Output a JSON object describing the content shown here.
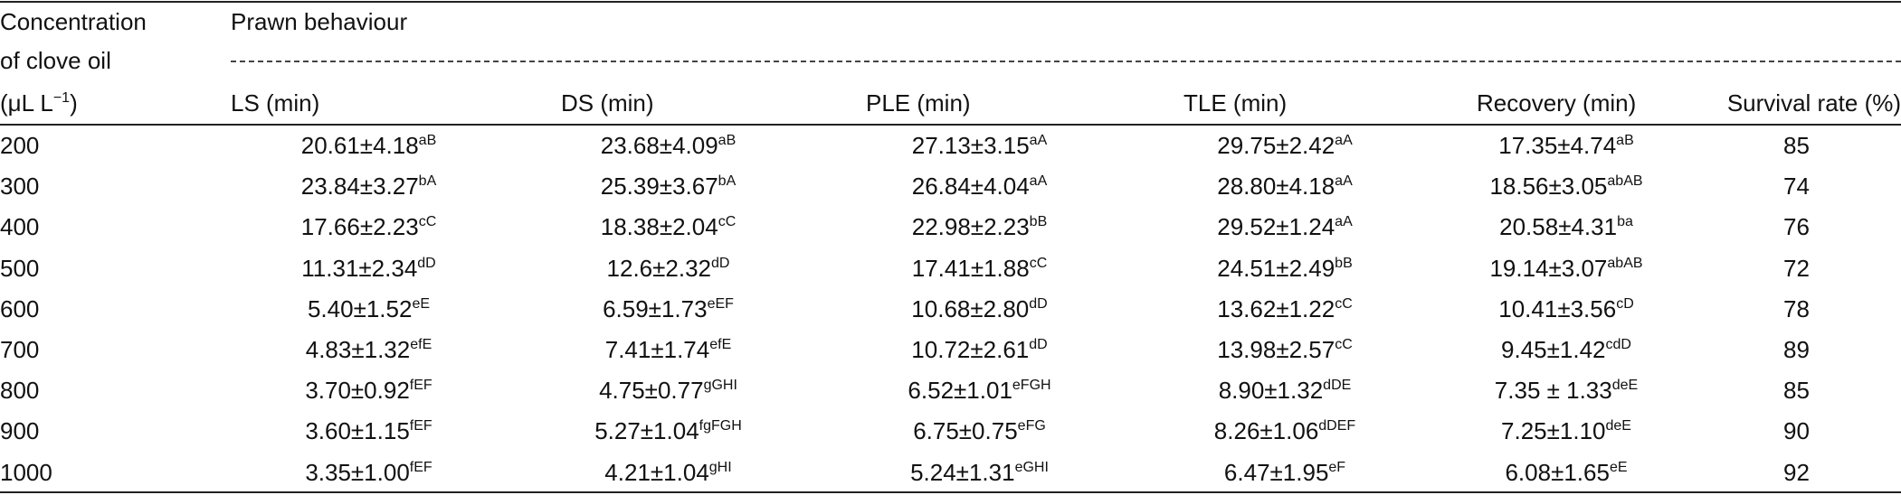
{
  "header": {
    "stub": {
      "line1": "Concentration",
      "line2": "of clove oil",
      "line3_before": "(μL L",
      "line3_sup": "−1",
      "line3_after": ")"
    },
    "group": "Prawn behaviour",
    "columns": [
      "LS (min)",
      "DS (min)",
      "PLE (min)",
      "TLE (min)",
      "Recovery (min)",
      "Survival rate (%)"
    ]
  },
  "rows": [
    {
      "concentration": 200,
      "cells": [
        {
          "value": "20.61±4.18",
          "superscript": "aB"
        },
        {
          "value": "23.68±4.09",
          "superscript": "aB"
        },
        {
          "value": "27.13±3.15",
          "superscript": "aA"
        },
        {
          "value": "29.75±2.42",
          "superscript": "aA"
        },
        {
          "value": "17.35±4.74",
          "superscript": "aB"
        }
      ],
      "survival": 85
    },
    {
      "concentration": 300,
      "cells": [
        {
          "value": "23.84±3.27",
          "superscript": "bA"
        },
        {
          "value": "25.39±3.67",
          "superscript": "bA"
        },
        {
          "value": "26.84±4.04",
          "superscript": "aA"
        },
        {
          "value": "28.80±4.18",
          "superscript": "aA"
        },
        {
          "value": "18.56±3.05",
          "superscript": "abAB"
        }
      ],
      "survival": 74
    },
    {
      "concentration": 400,
      "cells": [
        {
          "value": "17.66±2.23",
          "superscript": "cC"
        },
        {
          "value": "18.38±2.04",
          "superscript": "cC"
        },
        {
          "value": "22.98±2.23",
          "superscript": "bB"
        },
        {
          "value": "29.52±1.24",
          "superscript": "aA"
        },
        {
          "value": "20.58±4.31",
          "superscript": "ba"
        }
      ],
      "survival": 76
    },
    {
      "concentration": 500,
      "cells": [
        {
          "value": "11.31±2.34",
          "superscript": "dD"
        },
        {
          "value": "12.6±2.32",
          "superscript": "dD"
        },
        {
          "value": "17.41±1.88",
          "superscript": "cC"
        },
        {
          "value": "24.51±2.49",
          "superscript": "bB"
        },
        {
          "value": "19.14±3.07",
          "superscript": "abAB"
        }
      ],
      "survival": 72
    },
    {
      "concentration": 600,
      "cells": [
        {
          "value": "5.40±1.52",
          "superscript": "eE"
        },
        {
          "value": "6.59±1.73",
          "superscript": "eEF"
        },
        {
          "value": "10.68±2.80",
          "superscript": "dD"
        },
        {
          "value": "13.62±1.22",
          "superscript": "cC"
        },
        {
          "value": "10.41±3.56",
          "superscript": "cD"
        }
      ],
      "survival": 78
    },
    {
      "concentration": 700,
      "cells": [
        {
          "value": "4.83±1.32",
          "superscript": "efE"
        },
        {
          "value": "7.41±1.74",
          "superscript": "efE"
        },
        {
          "value": "10.72±2.61",
          "superscript": "dD"
        },
        {
          "value": "13.98±2.57",
          "superscript": "cC"
        },
        {
          "value": "9.45±1.42",
          "superscript": "cdD"
        }
      ],
      "survival": 89
    },
    {
      "concentration": 800,
      "cells": [
        {
          "value": "3.70±0.92",
          "superscript": "fEF"
        },
        {
          "value": "4.75±0.77",
          "superscript": "gGHI"
        },
        {
          "value": "6.52±1.01",
          "superscript": "eFGH"
        },
        {
          "value": "8.90±1.32",
          "superscript": "dDE"
        },
        {
          "value": "7.35 ± 1.33",
          "superscript": "deE"
        }
      ],
      "survival": 85
    },
    {
      "concentration": 900,
      "cells": [
        {
          "value": "3.60±1.15",
          "superscript": "fEF"
        },
        {
          "value": "5.27±1.04",
          "superscript": "fgFGH"
        },
        {
          "value": "6.75±0.75",
          "superscript": "eFG"
        },
        {
          "value": "8.26±1.06",
          "superscript": "dDEF"
        },
        {
          "value": "7.25±1.10",
          "superscript": "deE"
        }
      ],
      "survival": 90
    },
    {
      "concentration": 1000,
      "cells": [
        {
          "value": "3.35±1.00",
          "superscript": "fEF"
        },
        {
          "value": "4.21±1.04",
          "superscript": "gHI"
        },
        {
          "value": "5.24±1.31",
          "superscript": "eGHI"
        },
        {
          "value": "6.47±1.95",
          "superscript": "eF"
        },
        {
          "value": "6.08±1.65",
          "superscript": "eE"
        }
      ],
      "survival": 92
    }
  ]
}
